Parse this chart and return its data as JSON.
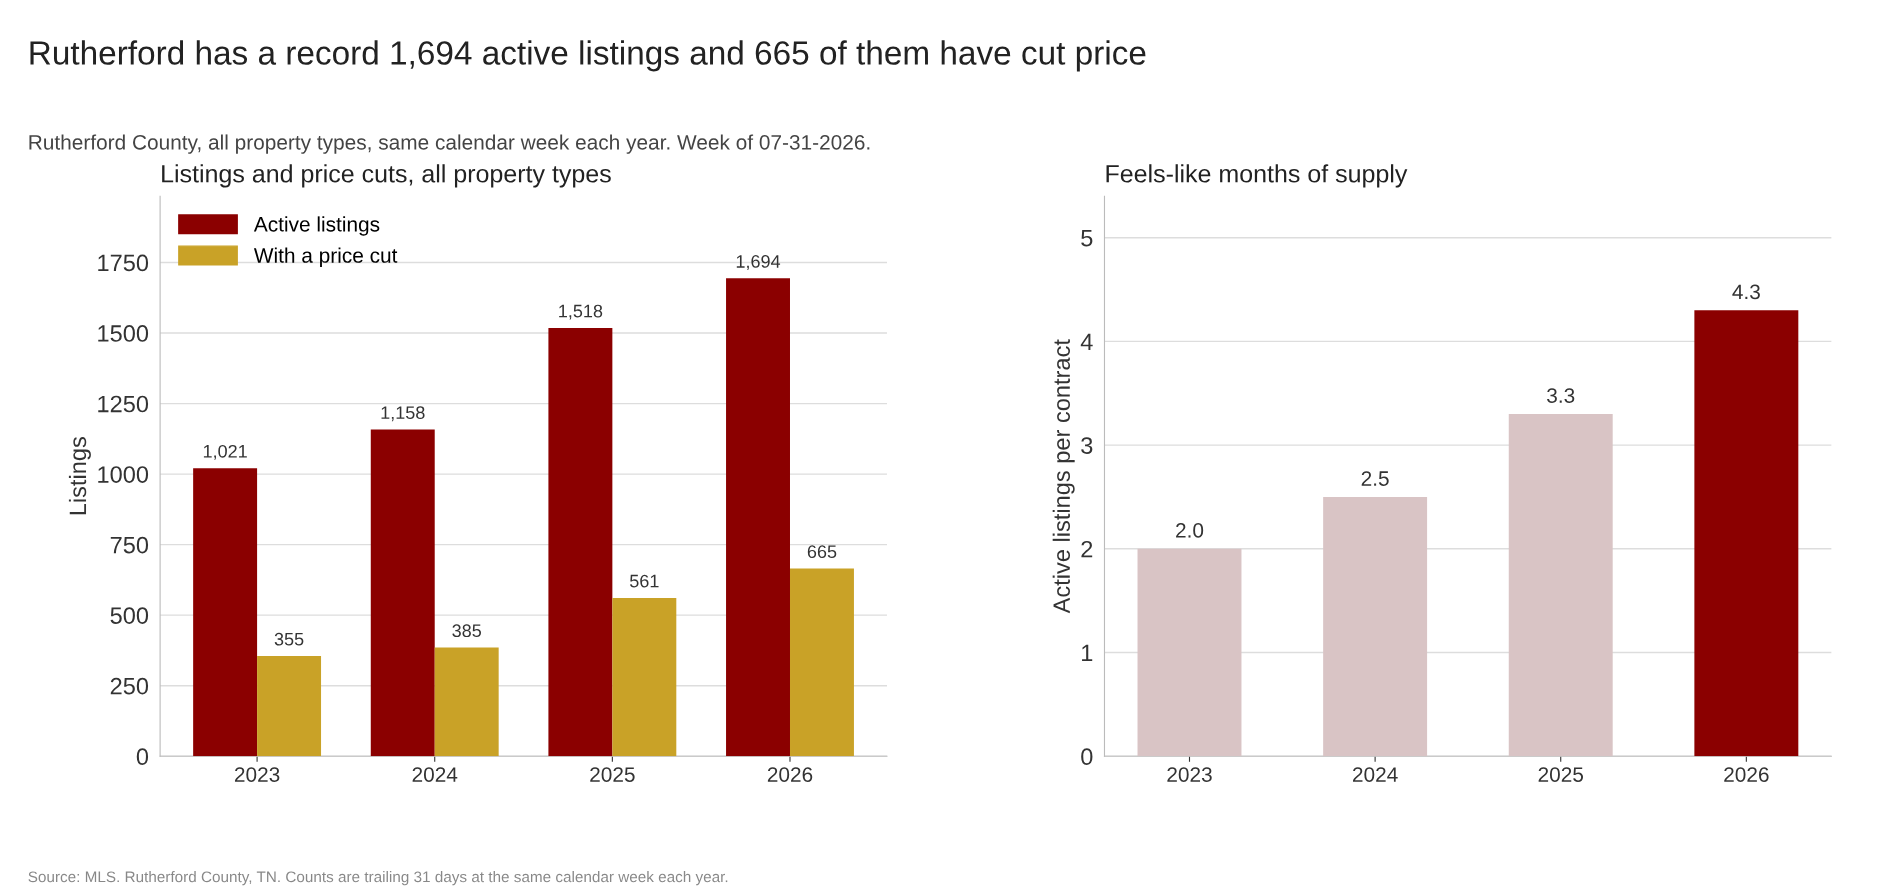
{
  "chart_data": [
    {
      "type": "bar",
      "title": "Listings and price cuts, all property types",
      "ylabel": "Listings",
      "categories": [
        "2023",
        "2024",
        "2025",
        "2026"
      ],
      "series": [
        {
          "name": "Active listings",
          "color": "#8b0000",
          "values": [
            1021,
            1158,
            1518,
            1694
          ],
          "value_labels": [
            "1,021",
            "1,158",
            "1,518",
            "1,694"
          ]
        },
        {
          "name": "With a price cut",
          "color": "#c9a227",
          "values": [
            355,
            385,
            561,
            665
          ],
          "value_labels": [
            "355",
            "385",
            "561",
            "665"
          ]
        }
      ],
      "ylim": [
        0,
        1985
      ],
      "yticks": [
        0,
        250,
        500,
        750,
        1000,
        1250,
        1500,
        1750
      ],
      "grid": "y",
      "legend": "top left",
      "annotations": [
        "Rutherford has a record 1,694 active listings and 665 of them have cut price",
        "Rutherford County, all property types, same calendar week each year. Week of 07-31-2026.",
        "Source: MLS. Rutherford County, TN. Counts are trailing 31 days at the same calendar week each year."
      ]
    },
    {
      "type": "bar",
      "title": "Feels-like months of supply",
      "ylabel": "Active listings per contract",
      "categories": [
        "2023",
        "2024",
        "2025",
        "2026"
      ],
      "values": [
        2.0,
        2.5,
        3.3,
        4.3
      ],
      "value_labels": [
        "2.0",
        "2.5",
        "3.3",
        "4.3"
      ],
      "colors": [
        "#d9c4c5",
        "#d9c4c5",
        "#d9c4c5",
        "#8b0000"
      ],
      "ylim": [
        0,
        5.4
      ],
      "yticks": [
        0,
        1,
        2,
        3,
        4,
        5
      ],
      "grid": "y",
      "legend": false
    }
  ]
}
